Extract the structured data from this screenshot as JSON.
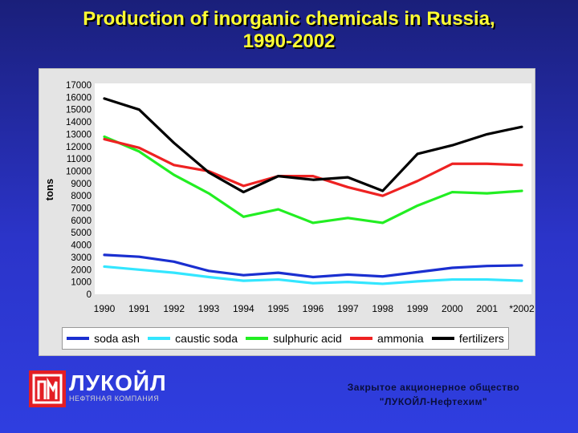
{
  "title_line1": "Production of inorganic chemicals in Russia,",
  "title_line2": "1990-2002",
  "chart_data": {
    "type": "line",
    "ylabel": "tons",
    "xlabel": "",
    "ylim": [
      0,
      17000
    ],
    "yticks": [
      0,
      1000,
      2000,
      3000,
      4000,
      5000,
      6000,
      7000,
      8000,
      9000,
      10000,
      11000,
      12000,
      13000,
      14000,
      15000,
      16000,
      17000
    ],
    "grid": true,
    "legend_position": "bottom",
    "x": [
      "1990",
      "1991",
      "1992",
      "1993",
      "1994",
      "1995",
      "1996",
      "1997",
      "1998",
      "1999",
      "2000",
      "2001",
      "*2002"
    ],
    "series": [
      {
        "name": "soda ash",
        "color": "#1a2fd0",
        "values": [
          3200,
          3050,
          2650,
          1900,
          1550,
          1750,
          1400,
          1600,
          1450,
          1800,
          2150,
          2300,
          2350
        ]
      },
      {
        "name": "caustic soda",
        "color": "#33e6ff",
        "values": [
          2250,
          2000,
          1750,
          1400,
          1100,
          1200,
          900,
          1000,
          850,
          1050,
          1200,
          1200,
          1100
        ]
      },
      {
        "name": "sulphuric acid",
        "color": "#22ee22",
        "values": [
          12800,
          11600,
          9700,
          8200,
          6300,
          6900,
          5800,
          6200,
          5800,
          7200,
          8300,
          8200,
          8400
        ]
      },
      {
        "name": "ammonia",
        "color": "#ee2222",
        "values": [
          12600,
          11900,
          10500,
          10000,
          8800,
          9600,
          9600,
          8700,
          8000,
          9200,
          10600,
          10600,
          10500
        ]
      },
      {
        "name": "fertilizers",
        "color": "#000000",
        "values": [
          15900,
          15000,
          12300,
          9900,
          8300,
          9600,
          9300,
          9500,
          8400,
          11400,
          12100,
          13000,
          13600
        ]
      }
    ]
  },
  "logo": {
    "brand": "ЛУКОЙЛ",
    "sub": "НЕФТЯНАЯ КОМПАНИЯ",
    "color": "#e31e24"
  },
  "company": {
    "line1": "Закрытое акционерное общество",
    "line2": "\"ЛУКОЙЛ-Нефтехим\""
  }
}
